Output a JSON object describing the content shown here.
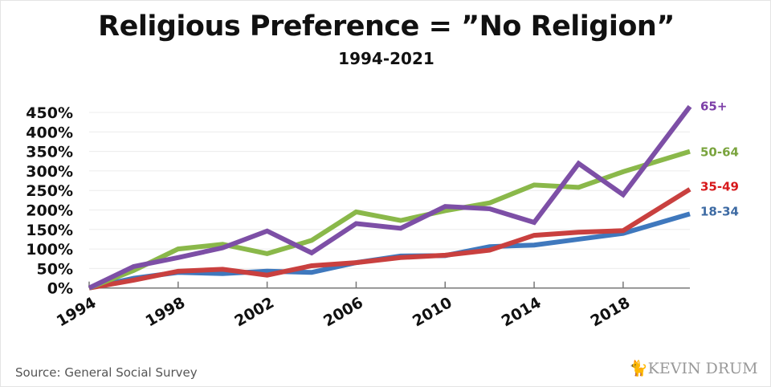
{
  "chart_data": {
    "type": "line",
    "title": "Religious Preference = ”No Religion”",
    "subtitle": "1994-2021",
    "source": "Source: General Social Survey",
    "logo": "KEVIN DRUM",
    "x": [
      1994,
      1996,
      1998,
      2000,
      2002,
      2004,
      2006,
      2008,
      2010,
      2012,
      2014,
      2016,
      2018,
      2021
    ],
    "xticks": [
      "1994",
      "1998",
      "2002",
      "2006",
      "2010",
      "2014",
      "2018"
    ],
    "yticks": [
      "0%",
      "50%",
      "100%",
      "150%",
      "200%",
      "250%",
      "300%",
      "350%",
      "400%",
      "450%"
    ],
    "ylim": [
      0,
      450
    ],
    "grid": true,
    "series": [
      {
        "name": "65+",
        "color": "#7d4fa6",
        "values": [
          0,
          55,
          78,
          103,
          146,
          90,
          165,
          153,
          209,
          203,
          168,
          319,
          239,
          465
        ]
      },
      {
        "name": "50-64",
        "color": "#8ab84a",
        "values": [
          0,
          45,
          100,
          112,
          88,
          122,
          195,
          173,
          198,
          218,
          264,
          258,
          298,
          350
        ]
      },
      {
        "name": "35-49",
        "color": "#c9403f",
        "values": [
          0,
          20,
          43,
          48,
          33,
          57,
          65,
          78,
          84,
          97,
          135,
          143,
          147,
          253
        ]
      },
      {
        "name": "18-34",
        "color": "#3f78bd",
        "values": [
          0,
          25,
          40,
          37,
          43,
          40,
          65,
          82,
          83,
          106,
          110,
          125,
          140,
          190
        ]
      }
    ],
    "label_colors": {
      "65+": "#7d3fa8",
      "50-64": "#7aa43e",
      "35-49": "#d7191c",
      "18-34": "#3d6aa3"
    }
  }
}
